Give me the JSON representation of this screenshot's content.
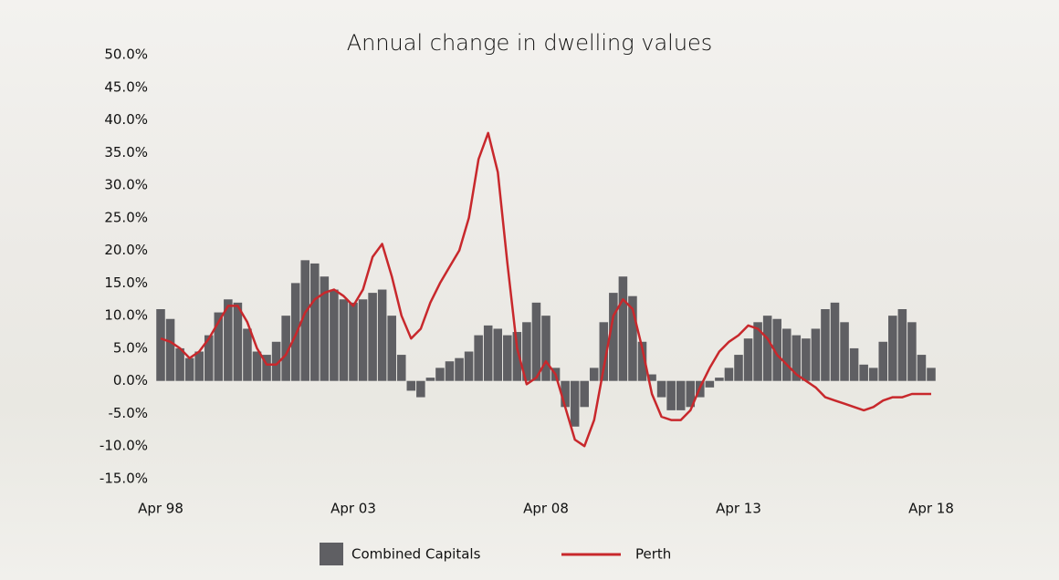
{
  "chart_data": {
    "type": "bar-line",
    "title": "Annual change in dwelling values",
    "categories": [
      "Apr 98",
      null,
      null,
      null,
      null,
      null,
      null,
      null,
      null,
      null,
      null,
      null,
      null,
      null,
      null,
      null,
      null,
      null,
      null,
      null,
      "Apr 03",
      null,
      null,
      null,
      null,
      null,
      null,
      null,
      null,
      null,
      null,
      null,
      null,
      null,
      null,
      null,
      null,
      null,
      null,
      null,
      "Apr 08",
      null,
      null,
      null,
      null,
      null,
      null,
      null,
      null,
      null,
      null,
      null,
      null,
      null,
      null,
      null,
      null,
      null,
      null,
      null,
      "Apr 13",
      null,
      null,
      null,
      null,
      null,
      null,
      null,
      null,
      null,
      null,
      null,
      null,
      null,
      null,
      null,
      null,
      null,
      null,
      null,
      "Apr 18"
    ],
    "series": [
      {
        "name": "Combined Capitals",
        "type": "bar",
        "color": "#5f5f63",
        "values": [
          11,
          9.5,
          5,
          3.5,
          4.5,
          7,
          10.5,
          12.5,
          12,
          8,
          4.5,
          4,
          6,
          10,
          15,
          18.5,
          18,
          16,
          14,
          12.5,
          12,
          12.5,
          13.5,
          14,
          10,
          4,
          -1.5,
          -2.5,
          0.5,
          2,
          3,
          3.5,
          4.5,
          7,
          8.5,
          8,
          7,
          7.5,
          9,
          12,
          10,
          2,
          -4,
          -7,
          -4,
          2,
          9,
          13.5,
          16,
          13,
          6,
          1,
          -2.5,
          -4.5,
          -4.5,
          -4,
          -2.5,
          -1,
          0.5,
          2,
          4,
          6.5,
          9,
          10,
          9.5,
          8,
          7,
          6.5,
          8,
          11,
          12,
          9,
          5,
          2.5,
          2,
          6,
          10,
          11,
          9,
          4,
          2
        ]
      },
      {
        "name": "Perth",
        "type": "line",
        "color": "#c8282c",
        "values": [
          6.5,
          6,
          5,
          3.5,
          4.5,
          6.5,
          9,
          11.5,
          11.5,
          9,
          5,
          2.5,
          2.5,
          4,
          7,
          10.5,
          12.5,
          13.5,
          14,
          13,
          11.5,
          14,
          19,
          21,
          16,
          10,
          6.5,
          8,
          12,
          15,
          17.5,
          20,
          25,
          34,
          38,
          32,
          18,
          5,
          -0.5,
          0.5,
          3,
          1,
          -4,
          -9,
          -10,
          -6,
          2,
          10,
          12.5,
          11,
          5,
          -2,
          -5.5,
          -6,
          -6,
          -4.5,
          -1,
          2,
          4.5,
          6,
          7,
          8.5,
          8,
          6.5,
          4,
          2.5,
          1,
          0,
          -1,
          -2.5,
          -3,
          -3.5,
          -4,
          -4.5,
          -4,
          -3,
          -2.5,
          -2.5,
          -2,
          -2,
          -2
        ]
      }
    ],
    "ylim": [
      -15,
      50
    ],
    "yticks": [
      {
        "value": 50,
        "label": "50.0%"
      },
      {
        "value": 45,
        "label": "45.0%"
      },
      {
        "value": 40,
        "label": "40.0%"
      },
      {
        "value": 35,
        "label": "35.0%"
      },
      {
        "value": 30,
        "label": "30.0%"
      },
      {
        "value": 25,
        "label": "25.0%"
      },
      {
        "value": 20,
        "label": "20.0%"
      },
      {
        "value": 15,
        "label": "15.0%"
      },
      {
        "value": 10,
        "label": "10.0%"
      },
      {
        "value": 5,
        "label": "5.0%"
      },
      {
        "value": 0,
        "label": "0.0%"
      },
      {
        "value": -5,
        "label": "-5.0%"
      },
      {
        "value": -10,
        "label": "-10.0%"
      },
      {
        "value": -15,
        "label": "-15.0%"
      }
    ],
    "legend": "bottom"
  }
}
